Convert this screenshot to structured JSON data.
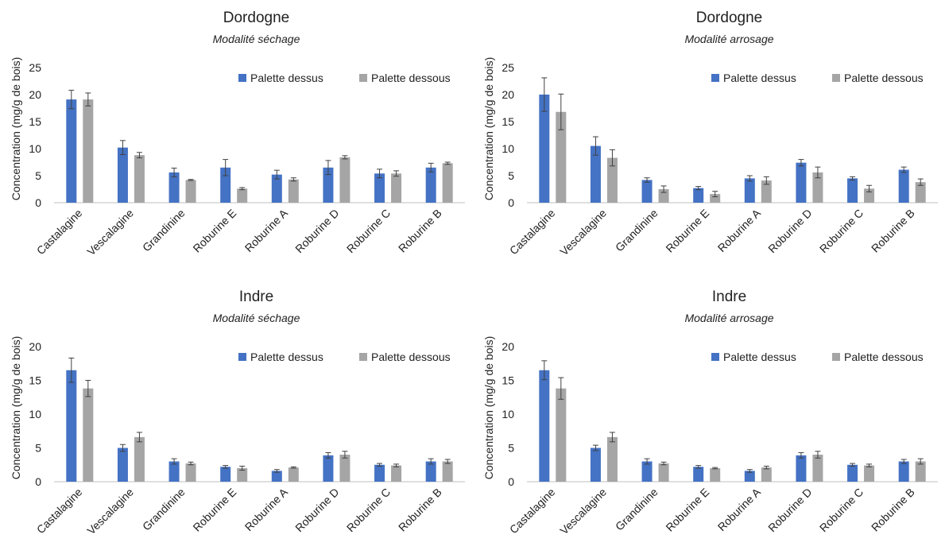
{
  "colors": {
    "dessus": "#4472C4",
    "dessous": "#A5A5A5",
    "axis": "#BFBFBF",
    "error": "#404040"
  },
  "chart_data": [
    {
      "type": "bar",
      "title": "Dordogne",
      "subtitle": "Modalité séchage",
      "ylabel": "Concentration (mg/g de bois)",
      "ylim": [
        0,
        25
      ],
      "yticks": [
        0,
        5,
        10,
        15,
        20,
        25
      ],
      "legend_position": "top-right",
      "categories": [
        "Castalagine",
        "Vescalagine",
        "Grandinine",
        "Roburine E",
        "Roburine A",
        "Roburine D",
        "Roburine C",
        "Roburine B"
      ],
      "series": [
        {
          "name": "Palette dessus",
          "values": [
            19.1,
            10.2,
            5.6,
            6.5,
            5.2,
            6.5,
            5.4,
            6.5
          ],
          "errors": [
            1.7,
            1.3,
            0.8,
            1.5,
            0.8,
            1.3,
            0.8,
            0.8
          ]
        },
        {
          "name": "Palette dessous",
          "values": [
            19.1,
            8.8,
            4.2,
            2.6,
            4.3,
            8.4,
            5.4,
            7.3
          ],
          "errors": [
            1.2,
            0.5,
            0.1,
            0.2,
            0.3,
            0.3,
            0.5,
            0.2
          ]
        }
      ]
    },
    {
      "type": "bar",
      "title": "Dordogne",
      "subtitle": "Modalité arrosage",
      "ylabel": "Concentration (mg/g de bois)",
      "ylim": [
        0,
        25
      ],
      "yticks": [
        0,
        5,
        10,
        15,
        20,
        25
      ],
      "legend_position": "top-right",
      "categories": [
        "Castalagine",
        "Vescalagine",
        "Grandinine",
        "Roburine E",
        "Roburine A",
        "Roburine D",
        "Roburine C",
        "Roburine B"
      ],
      "series": [
        {
          "name": "Palette dessus",
          "values": [
            20.0,
            10.5,
            4.2,
            2.7,
            4.5,
            7.4,
            4.5,
            6.1
          ],
          "errors": [
            3.1,
            1.7,
            0.4,
            0.3,
            0.5,
            0.6,
            0.3,
            0.5
          ]
        },
        {
          "name": "Palette dessous",
          "values": [
            16.8,
            8.3,
            2.5,
            1.6,
            4.1,
            5.6,
            2.6,
            3.8
          ],
          "errors": [
            3.3,
            1.5,
            0.6,
            0.5,
            0.7,
            1.0,
            0.6,
            0.6
          ]
        }
      ]
    },
    {
      "type": "bar",
      "title": "Indre",
      "subtitle": "Modalité séchage",
      "ylabel": "Concentration (mg/g de bois)",
      "ylim": [
        0,
        20
      ],
      "yticks": [
        0,
        5,
        10,
        15,
        20
      ],
      "legend_position": "top-right",
      "categories": [
        "Castalagine",
        "Vescalagine",
        "Grandinine",
        "Roburine E",
        "Roburine A",
        "Roburine D",
        "Roburine C",
        "Roburine B"
      ],
      "series": [
        {
          "name": "Palette dessus",
          "values": [
            16.5,
            5.0,
            3.0,
            2.2,
            1.6,
            3.9,
            2.5,
            3.0
          ],
          "errors": [
            1.8,
            0.5,
            0.4,
            0.2,
            0.2,
            0.4,
            0.2,
            0.4
          ]
        },
        {
          "name": "Palette dessous",
          "values": [
            13.8,
            6.6,
            2.7,
            2.0,
            2.1,
            4.0,
            2.4,
            3.0
          ],
          "errors": [
            1.2,
            0.7,
            0.2,
            0.3,
            0.1,
            0.5,
            0.2,
            0.3
          ]
        }
      ]
    },
    {
      "type": "bar",
      "title": "Indre",
      "subtitle": "Modalité arrosage",
      "ylabel": "Concentration (mg/g de bois)",
      "ylim": [
        0,
        20
      ],
      "yticks": [
        0,
        5,
        10,
        15,
        20
      ],
      "legend_position": "top-right",
      "categories": [
        "Castalagine",
        "Vescalagine",
        "Grandinine",
        "Roburine E",
        "Roburine A",
        "Roburine D",
        "Roburine C",
        "Roburine B"
      ],
      "series": [
        {
          "name": "Palette dessus",
          "values": [
            16.5,
            5.0,
            3.0,
            2.2,
            1.6,
            3.9,
            2.5,
            3.0
          ],
          "errors": [
            1.4,
            0.4,
            0.4,
            0.2,
            0.2,
            0.4,
            0.2,
            0.3
          ]
        },
        {
          "name": "Palette dessous",
          "values": [
            13.8,
            6.6,
            2.7,
            2.0,
            2.1,
            4.0,
            2.4,
            3.0
          ],
          "errors": [
            1.6,
            0.7,
            0.2,
            0.1,
            0.2,
            0.5,
            0.2,
            0.4
          ]
        }
      ]
    }
  ]
}
